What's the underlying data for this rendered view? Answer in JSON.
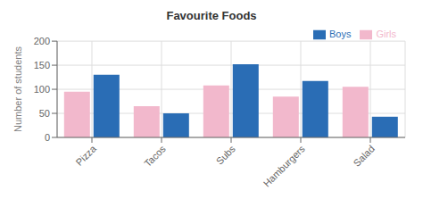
{
  "chart_data": {
    "type": "bar",
    "title": "Favourite Foods",
    "categories": [
      "Pizza",
      "Tacos",
      "Subs",
      "Hamburgers",
      "Salad"
    ],
    "series": [
      {
        "name": "Girls",
        "color": "#f2b8cc",
        "values": [
          95,
          65,
          108,
          85,
          105
        ]
      },
      {
        "name": "Boys",
        "color": "#2a6db5",
        "values": [
          130,
          50,
          152,
          117,
          43
        ]
      }
    ],
    "ylabel": "Number of students",
    "ylim": [
      0,
      200
    ],
    "yticks": [
      0,
      50,
      100,
      150,
      200
    ],
    "grid": true,
    "legend": "upper right"
  }
}
